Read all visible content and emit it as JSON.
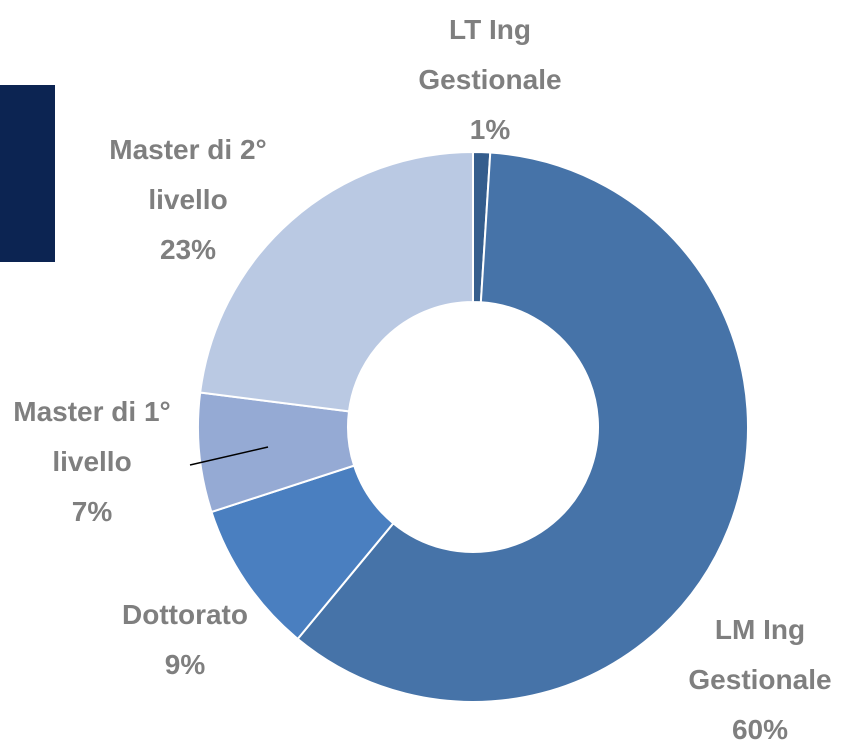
{
  "chart_data": {
    "type": "pie",
    "categories": [
      "LT Ing Gestionale",
      "LM Ing Gestionale",
      "Dottorato",
      "Master di 1° livello",
      "Master di 2° livello"
    ],
    "values": [
      1,
      60,
      9,
      7,
      23
    ],
    "value_labels": [
      "1%",
      "60%",
      "9%",
      "7%",
      "23%"
    ],
    "colors": [
      "#345d8d",
      "#4673a8",
      "#4a7fc0",
      "#95aad4",
      "#bac9e3"
    ]
  }
}
